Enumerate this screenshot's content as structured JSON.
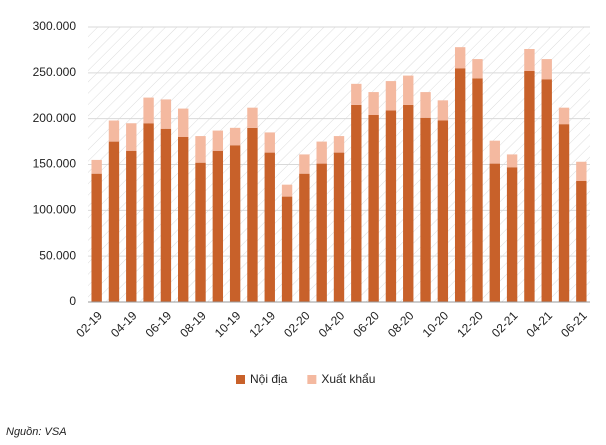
{
  "chart_data": {
    "type": "stacked_bar",
    "categories": [
      "02-19",
      null,
      "04-19",
      null,
      "06-19",
      null,
      "08-19",
      null,
      "10-19",
      null,
      "12-19",
      null,
      "02-20",
      null,
      "04-20",
      null,
      "06-20",
      null,
      "08-20",
      null,
      "10-20",
      null,
      "12-20",
      null,
      "02-21",
      null,
      "04-21",
      null,
      "06-21"
    ],
    "series": [
      {
        "name": "Nội địa",
        "color": "#c8612a",
        "values": [
          140000,
          175000,
          165000,
          195000,
          189000,
          180000,
          152000,
          165000,
          171000,
          190000,
          163000,
          115000,
          140000,
          151000,
          163000,
          215000,
          204000,
          209000,
          215000,
          201000,
          198000,
          255000,
          244000,
          151000,
          147000,
          252000,
          243000,
          194000,
          132000
        ]
      },
      {
        "name": "Xuất khẩu",
        "color": "#f4b9a0",
        "values": [
          15000,
          23000,
          30000,
          28000,
          32000,
          31000,
          29000,
          22000,
          19000,
          22000,
          22000,
          13000,
          21000,
          24000,
          18000,
          23000,
          25000,
          32000,
          32000,
          28000,
          22000,
          23000,
          21000,
          25000,
          14000,
          24000,
          22000,
          18000,
          21000
        ]
      }
    ],
    "ylim": [
      0,
      300000
    ],
    "yticks": [
      0,
      {
        "value": 50000,
        "label": "50.000"
      },
      {
        "value": 100000,
        "label": "100.000"
      },
      {
        "value": 150000,
        "label": "150.000"
      },
      {
        "value": 200000,
        "label": "200.000"
      },
      {
        "value": 250000,
        "label": "250.000"
      },
      {
        "value": 300000,
        "label": "300.000"
      }
    ],
    "grid": true,
    "legend": "bottom",
    "source": "Nguồn: VSA"
  }
}
